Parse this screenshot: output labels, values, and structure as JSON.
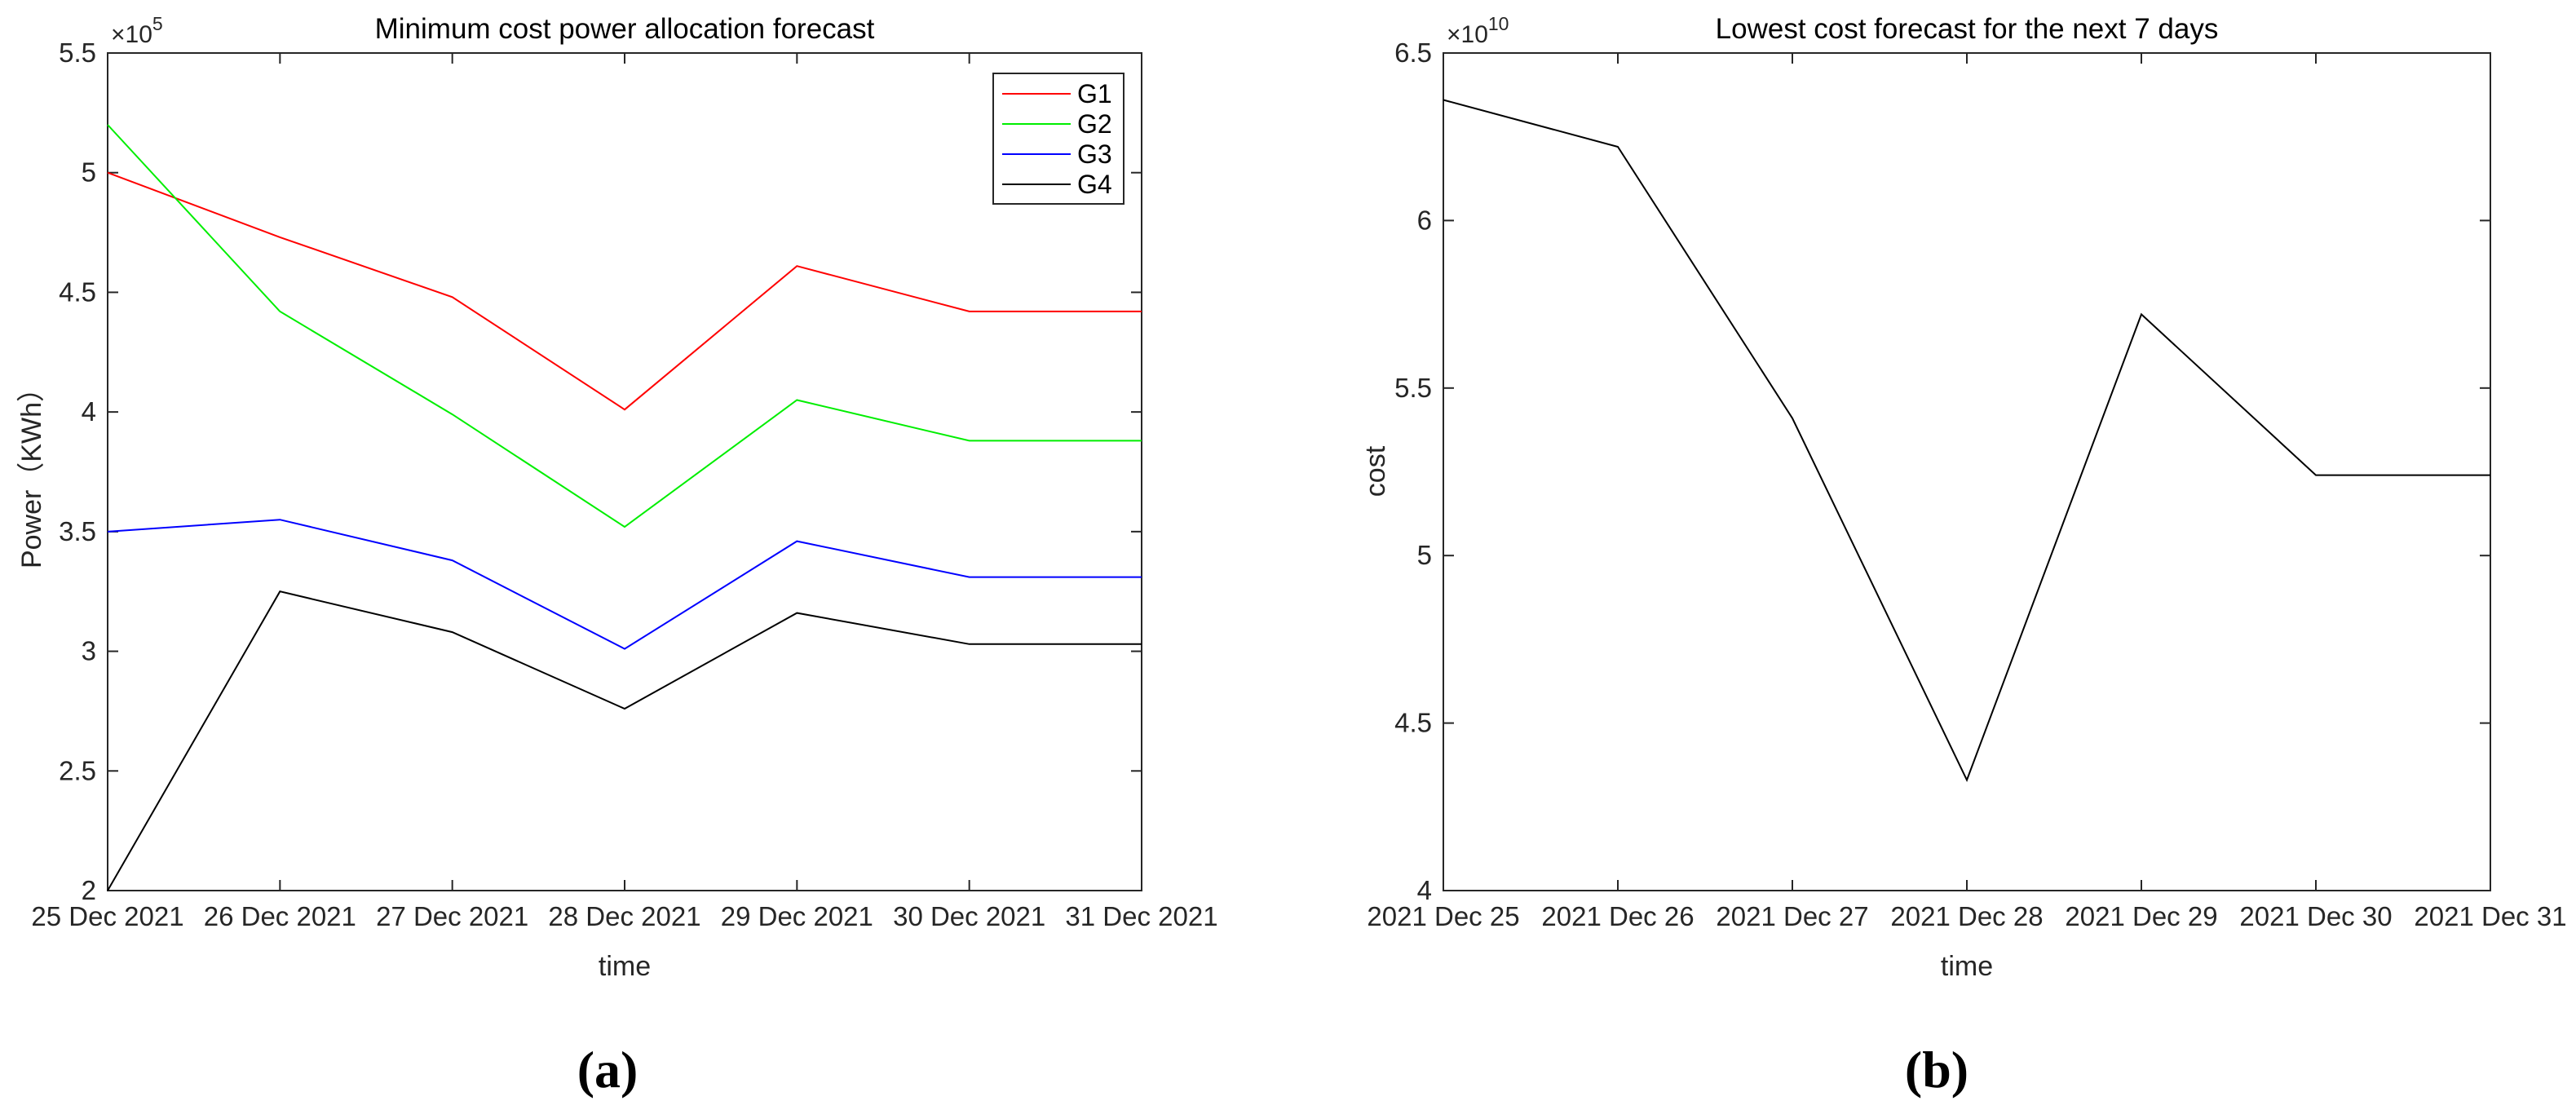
{
  "page": {
    "background": "#ffffff"
  },
  "colors": {
    "axis": "#262626",
    "tick_label": "#262626",
    "title": "#000000",
    "legend_border": "#262626",
    "legend_background": "#ffffff"
  },
  "captions": {
    "a": "(a)",
    "b": "(b)"
  },
  "chart_data": [
    {
      "type": "line",
      "title": "Minimum cost power allocation forecast",
      "xlabel": "time",
      "ylabel": "Power（KWh）",
      "y_multiplier": {
        "base": "×10",
        "exponent": "5"
      },
      "categories": [
        "25 Dec 2021",
        "26 Dec 2021",
        "27 Dec 2021",
        "28 Dec 2021",
        "29 Dec 2021",
        "30 Dec 2021",
        "31 Dec 2021"
      ],
      "ylim": [
        2,
        5.5
      ],
      "ytick_labels": [
        "2",
        "2.5",
        "3",
        "3.5",
        "4",
        "4.5",
        "5",
        "5.5"
      ],
      "grid": false,
      "legend": {
        "position": "top-right",
        "entries": [
          "G1",
          "G2",
          "G3",
          "G4"
        ]
      },
      "series": [
        {
          "name": "G1",
          "color": "#ff0000",
          "values": [
            5.0,
            4.73,
            4.48,
            4.01,
            4.61,
            4.42,
            4.42
          ]
        },
        {
          "name": "G2",
          "color": "#00ee00",
          "values": [
            5.2,
            4.42,
            3.99,
            3.52,
            4.05,
            3.88,
            3.88
          ]
        },
        {
          "name": "G3",
          "color": "#0000ff",
          "values": [
            3.5,
            3.55,
            3.38,
            3.01,
            3.46,
            3.31,
            3.31
          ]
        },
        {
          "name": "G4",
          "color": "#000000",
          "values": [
            2.0,
            3.25,
            3.08,
            2.76,
            3.16,
            3.03,
            3.03
          ]
        }
      ]
    },
    {
      "type": "line",
      "title": "Lowest cost forecast for the next 7 days",
      "xlabel": "time",
      "ylabel": "cost",
      "y_multiplier": {
        "base": "×10",
        "exponent": "10"
      },
      "categories": [
        "2021 Dec 25",
        "2021 Dec 26",
        "2021 Dec 27",
        "2021 Dec 28",
        "2021 Dec 29",
        "2021 Dec 30",
        "2021 Dec 31"
      ],
      "ylim": [
        4,
        6.5
      ],
      "ytick_labels": [
        "4",
        "4.5",
        "5",
        "5.5",
        "6",
        "6.5"
      ],
      "grid": false,
      "legend": null,
      "series": [
        {
          "name": "cost",
          "color": "#000000",
          "values": [
            6.36,
            6.22,
            5.41,
            4.33,
            5.72,
            5.24,
            5.24
          ]
        }
      ]
    }
  ]
}
